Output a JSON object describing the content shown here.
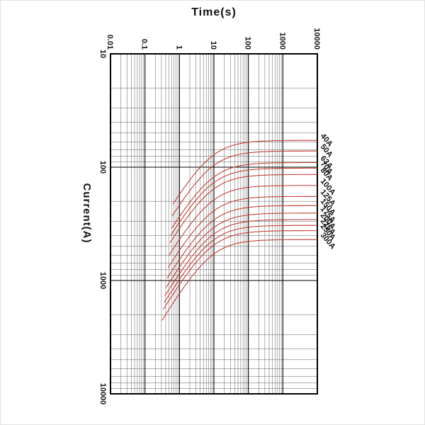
{
  "page": {
    "background": "#ffffff"
  },
  "chart_data": {
    "type": "line",
    "title": "Time(s)",
    "xlabel": "Time(s)",
    "ylabel": "Current(A)",
    "x_scale": "log",
    "y_scale": "log",
    "x_range": [
      0.01,
      10000
    ],
    "y_range": [
      10,
      10000
    ],
    "x_ticks": [
      "0.01",
      "0.1",
      "1",
      "10",
      "100",
      "1000",
      "10000"
    ],
    "y_ticks": [
      "10",
      "100",
      "1000",
      "10000"
    ],
    "orientation": "rotated: time on horizontal axis, current on vertical axis increasing downward",
    "grid": "log-log major and minor gridlines, black on white",
    "curve_color": "#c0392b",
    "text_color": "#111111",
    "legend_position": "right edge, diagonal labels at curve ends",
    "series": [
      {
        "name": "40A",
        "rating": 40,
        "asymptote_current": 58,
        "tau": 8,
        "t_start": 0.65,
        "points": [
          [
            1,
            174
          ],
          [
            10,
            78
          ],
          [
            100,
            60
          ],
          [
            1000,
            58
          ],
          [
            10000,
            58
          ]
        ]
      },
      {
        "name": "50A",
        "rating": 50,
        "asymptote_current": 72,
        "tau": 8,
        "t_start": 0.62,
        "points": [
          [
            1,
            216
          ],
          [
            10,
            97
          ],
          [
            100,
            75
          ],
          [
            1000,
            72
          ],
          [
            10000,
            72
          ]
        ]
      },
      {
        "name": "63A",
        "rating": 63,
        "asymptote_current": 91,
        "tau": 8,
        "t_start": 0.59,
        "points": [
          [
            1,
            273
          ],
          [
            10,
            122
          ],
          [
            100,
            95
          ],
          [
            1000,
            91
          ],
          [
            10000,
            91
          ]
        ]
      },
      {
        "name": "70A",
        "rating": 70,
        "asymptote_current": 102,
        "tau": 8,
        "t_start": 0.56,
        "points": [
          [
            1,
            306
          ],
          [
            10,
            137
          ],
          [
            100,
            106
          ],
          [
            1000,
            102
          ],
          [
            10000,
            102
          ]
        ]
      },
      {
        "name": "80A",
        "rating": 80,
        "asymptote_current": 116,
        "tau": 8,
        "t_start": 0.53,
        "points": [
          [
            1,
            348
          ],
          [
            10,
            156
          ],
          [
            100,
            121
          ],
          [
            1000,
            117
          ],
          [
            10000,
            116
          ]
        ]
      },
      {
        "name": "100A",
        "rating": 100,
        "asymptote_current": 145,
        "tau": 8,
        "t_start": 0.5,
        "points": [
          [
            1,
            435
          ],
          [
            10,
            195
          ],
          [
            100,
            151
          ],
          [
            1000,
            146
          ],
          [
            10000,
            145
          ]
        ]
      },
      {
        "name": "125A",
        "rating": 125,
        "asymptote_current": 181,
        "tau": 8,
        "t_start": 0.47,
        "points": [
          [
            1,
            543
          ],
          [
            10,
            243
          ],
          [
            100,
            188
          ],
          [
            1000,
            182
          ],
          [
            10000,
            181
          ]
        ]
      },
      {
        "name": "150A",
        "rating": 150,
        "asymptote_current": 218,
        "tau": 8,
        "t_start": 0.44,
        "points": [
          [
            1,
            654
          ],
          [
            10,
            292
          ],
          [
            100,
            227
          ],
          [
            1000,
            219
          ],
          [
            10000,
            218
          ]
        ]
      },
      {
        "name": "175A",
        "rating": 175,
        "asymptote_current": 254,
        "tau": 8,
        "t_start": 0.41,
        "points": [
          [
            1,
            762
          ],
          [
            10,
            341
          ],
          [
            100,
            264
          ],
          [
            1000,
            255
          ],
          [
            10000,
            254
          ]
        ]
      },
      {
        "name": "200A",
        "rating": 200,
        "asymptote_current": 290,
        "tau": 8,
        "t_start": 0.38,
        "points": [
          [
            1,
            870
          ],
          [
            10,
            389
          ],
          [
            100,
            301
          ],
          [
            1000,
            291
          ],
          [
            10000,
            290
          ]
        ]
      },
      {
        "name": "225A",
        "rating": 225,
        "asymptote_current": 326,
        "tau": 8,
        "t_start": 0.36,
        "points": [
          [
            1,
            978
          ],
          [
            10,
            437
          ],
          [
            100,
            339
          ],
          [
            1000,
            327
          ],
          [
            10000,
            326
          ]
        ]
      },
      {
        "name": "250A",
        "rating": 250,
        "asymptote_current": 363,
        "tau": 8,
        "t_start": 0.34,
        "points": [
          [
            1,
            1089
          ],
          [
            10,
            487
          ],
          [
            100,
            377
          ],
          [
            1000,
            364
          ],
          [
            10000,
            363
          ]
        ]
      },
      {
        "name": "300A",
        "rating": 300,
        "asymptote_current": 435,
        "tau": 8,
        "t_start": 0.31,
        "points": [
          [
            1,
            1305
          ],
          [
            10,
            584
          ],
          [
            100,
            452
          ],
          [
            1000,
            437
          ],
          [
            10000,
            435
          ]
        ]
      }
    ]
  }
}
